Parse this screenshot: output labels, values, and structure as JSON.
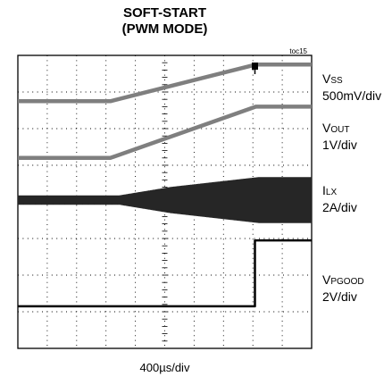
{
  "title_line1": "SOFT-START",
  "title_line2": "(PWM MODE)",
  "figure_tag": "toc15",
  "time_scale": "400µs/div",
  "chart_data": {
    "type": "line",
    "title": "SOFT-START (PWM MODE)",
    "xlabel": "400µs/div",
    "grid": true,
    "x_divisions": 10,
    "y_divisions": 8,
    "x_range_div": [
      0,
      10
    ],
    "y_range_div": [
      0,
      8
    ],
    "series": [
      {
        "name": "VSS",
        "base": "V",
        "sub": "SS",
        "scale": "500mV/div",
        "color": "#7f7f7f",
        "x": [
          0,
          3.15,
          8.1,
          10
        ],
        "y": [
          6.75,
          6.75,
          7.75,
          7.75
        ]
      },
      {
        "name": "VOUT",
        "base": "V",
        "sub": "OUT",
        "scale": "1V/div",
        "color": "#7f7f7f",
        "x": [
          0,
          3.15,
          8.1,
          10
        ],
        "y": [
          5.2,
          5.2,
          6.6,
          6.6
        ]
      },
      {
        "name": "ILX",
        "base": "I",
        "sub": "LX",
        "scale": "2A/div",
        "color": "#262626",
        "x": [
          0,
          3.45,
          5.2,
          8.2,
          10
        ],
        "y": [
          4.05,
          4.05,
          4.05,
          4.05,
          4.05
        ],
        "ripple": [
          0.12,
          0.12,
          0.35,
          0.62,
          0.62
        ]
      },
      {
        "name": "VPGOOD",
        "base": "V",
        "sub": "PGOOD",
        "scale": "2V/div",
        "color": "#000000",
        "x": [
          0,
          8.07,
          8.07,
          10
        ],
        "y": [
          1.15,
          1.15,
          2.95,
          2.95
        ]
      }
    ]
  }
}
